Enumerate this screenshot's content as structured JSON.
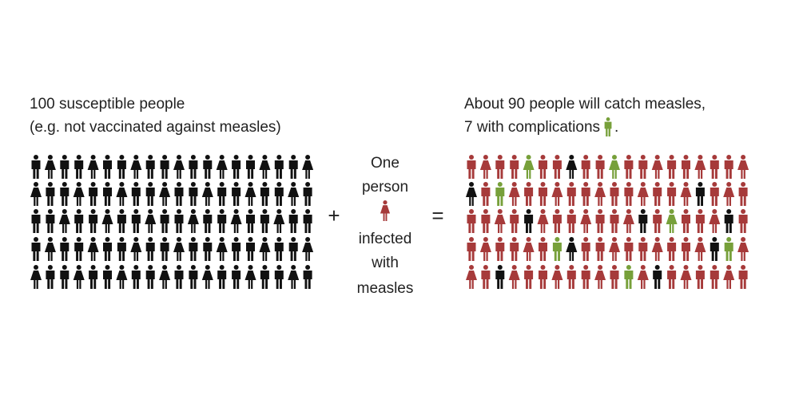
{
  "left": {
    "title_lines": [
      "100 susceptible people",
      "(e.g. not vaccinated against measles)"
    ]
  },
  "plus": "+",
  "center": {
    "lines_above": [
      "One",
      "person"
    ],
    "lines_below": [
      "infected",
      "with",
      "measles"
    ]
  },
  "equals": "=",
  "right": {
    "title_line_1": "About 90 people will catch measles,",
    "title_line_2": "7 with complications",
    "title_end": "."
  }
}
